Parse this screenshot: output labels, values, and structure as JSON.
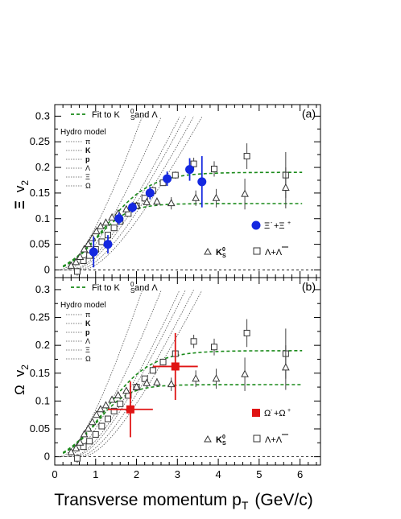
{
  "xlabel": "Transverse momentum p",
  "xlabel_sub": "T",
  "xlabel_unit": "(GeV/c)",
  "colors": {
    "xi": "#1428e0",
    "omega": "#e01414",
    "fit": "#1a8a1a",
    "hydro": "#555555",
    "data": "#444444"
  },
  "chart_data": [
    {
      "type": "scatter",
      "panel_label": "(a)",
      "ylabel": "Ξ",
      "ylabel_v": "v",
      "ylabel_sub": "2",
      "xlim": [
        0,
        6.5
      ],
      "ylim": [
        -0.015,
        0.31
      ],
      "x_ticks": [
        0,
        1,
        2,
        3,
        4,
        5,
        6
      ],
      "y_ticks": [
        0,
        0.05,
        0.1,
        0.15,
        0.2,
        0.25,
        0.3
      ],
      "y_tick_labels": [
        "0",
        "0.05",
        "0.1",
        "0.15",
        "0.2",
        "0.25",
        "0.3"
      ],
      "legend_fit": "Fit to K",
      "legend_fit_sup": "0",
      "legend_fit_sub": "S",
      "legend_fit_rest": " and Λ",
      "hydro_title": "Hydro model",
      "hydro_labels": [
        "π",
        "K",
        "p",
        "Λ",
        "Ξ",
        "Ω"
      ],
      "main_label": "Ξ",
      "main_label_rest": "+Ξ",
      "main_label_sup": "-",
      "main_label_sup2": "+",
      "k_label": "K",
      "k_sup": "0",
      "k_sub": "S",
      "lambda_label": "Λ+Λ",
      "main_series": {
        "name": "Xi",
        "x": [
          0.95,
          1.3,
          1.57,
          1.9,
          2.33,
          2.75,
          3.3,
          3.6
        ],
        "y": [
          0.035,
          0.05,
          0.1,
          0.122,
          0.15,
          0.178,
          0.196,
          0.172
        ],
        "yerr": [
          0.03,
          0.018,
          0.012,
          0.01,
          0.012,
          0.014,
          0.022,
          0.05
        ]
      },
      "kshort": {
        "x": [
          0.4,
          0.52,
          0.62,
          0.72,
          0.82,
          0.92,
          1.02,
          1.12,
          1.25,
          1.4,
          1.55,
          1.75,
          2.0,
          2.25,
          2.5,
          2.85,
          3.45,
          3.95,
          4.65,
          5.65
        ],
        "y": [
          0.008,
          0.015,
          0.025,
          0.04,
          0.05,
          0.062,
          0.075,
          0.085,
          0.092,
          0.102,
          0.11,
          0.118,
          0.125,
          0.132,
          0.133,
          0.13,
          0.14,
          0.14,
          0.148,
          0.16
        ],
        "yerr": [
          0.003,
          0.003,
          0.003,
          0.003,
          0.003,
          0.004,
          0.004,
          0.004,
          0.004,
          0.005,
          0.005,
          0.006,
          0.006,
          0.007,
          0.008,
          0.012,
          0.015,
          0.018,
          0.03,
          0.04
        ]
      },
      "lambda": {
        "x": [
          0.55,
          0.7,
          0.85,
          1.0,
          1.15,
          1.3,
          1.45,
          1.6,
          1.8,
          2.0,
          2.2,
          2.4,
          2.65,
          2.95,
          3.4,
          3.9,
          4.7,
          5.65
        ],
        "y": [
          -0.003,
          0.018,
          0.028,
          0.04,
          0.055,
          0.068,
          0.082,
          0.095,
          0.11,
          0.125,
          0.14,
          0.155,
          0.17,
          0.185,
          0.207,
          0.197,
          0.222,
          0.185
        ],
        "yerr": [
          0.008,
          0.004,
          0.004,
          0.004,
          0.004,
          0.004,
          0.004,
          0.004,
          0.005,
          0.005,
          0.005,
          0.006,
          0.006,
          0.007,
          0.012,
          0.015,
          0.025,
          0.045
        ]
      }
    },
    {
      "type": "scatter",
      "panel_label": "(b)",
      "ylabel": "Ω",
      "ylabel_v": "v",
      "ylabel_sub": "2",
      "xlim": [
        0,
        6.5
      ],
      "ylim": [
        -0.015,
        0.31
      ],
      "x_ticks": [
        0,
        1,
        2,
        3,
        4,
        5,
        6
      ],
      "x_tick_labels": [
        "0",
        "1",
        "2",
        "3",
        "4",
        "5",
        "6"
      ],
      "y_ticks": [
        0,
        0.05,
        0.1,
        0.15,
        0.2,
        0.25,
        0.3
      ],
      "y_tick_labels": [
        "0",
        "0.05",
        "0.1",
        "0.15",
        "0.2",
        "0.25",
        "0.3"
      ],
      "legend_fit": "Fit to K",
      "legend_fit_sup": "0",
      "legend_fit_sub": "S",
      "legend_fit_rest": " and Λ",
      "hydro_title": "Hydro model",
      "hydro_labels": [
        "π",
        "K",
        "p",
        "Λ",
        "Ξ",
        "Ω"
      ],
      "main_label": "Ω",
      "main_label_rest": "+Ω",
      "main_label_sup": "-",
      "main_label_sup2": "+",
      "k_label": "K",
      "k_sup": "0",
      "k_sub": "S",
      "lambda_label": "Λ+Λ",
      "main_series": {
        "name": "Omega",
        "x": [
          1.85,
          2.95
        ],
        "y": [
          0.085,
          0.162
        ],
        "yerr": [
          0.05,
          0.06
        ],
        "xerr": [
          0.55,
          0.55
        ]
      },
      "kshort": {
        "x": [
          0.4,
          0.52,
          0.62,
          0.72,
          0.82,
          0.92,
          1.02,
          1.12,
          1.25,
          1.4,
          1.55,
          1.75,
          2.0,
          2.25,
          2.5,
          2.85,
          3.45,
          3.95,
          4.65,
          5.65
        ],
        "y": [
          0.008,
          0.015,
          0.025,
          0.04,
          0.05,
          0.062,
          0.075,
          0.085,
          0.092,
          0.102,
          0.11,
          0.118,
          0.125,
          0.132,
          0.133,
          0.13,
          0.14,
          0.14,
          0.148,
          0.16
        ],
        "yerr": [
          0.003,
          0.003,
          0.003,
          0.003,
          0.003,
          0.004,
          0.004,
          0.004,
          0.004,
          0.005,
          0.005,
          0.006,
          0.006,
          0.007,
          0.008,
          0.012,
          0.015,
          0.018,
          0.03,
          0.04
        ]
      },
      "lambda": {
        "x": [
          0.55,
          0.7,
          0.85,
          1.0,
          1.15,
          1.3,
          1.45,
          1.6,
          1.8,
          2.0,
          2.2,
          2.4,
          2.65,
          2.95,
          3.4,
          3.9,
          4.7,
          5.65
        ],
        "y": [
          -0.003,
          0.018,
          0.028,
          0.04,
          0.055,
          0.068,
          0.082,
          0.095,
          0.11,
          0.125,
          0.14,
          0.155,
          0.17,
          0.185,
          0.207,
          0.197,
          0.222,
          0.185
        ],
        "yerr": [
          0.008,
          0.004,
          0.004,
          0.004,
          0.004,
          0.004,
          0.004,
          0.004,
          0.005,
          0.005,
          0.005,
          0.006,
          0.006,
          0.007,
          0.012,
          0.015,
          0.025,
          0.045
        ]
      }
    }
  ]
}
